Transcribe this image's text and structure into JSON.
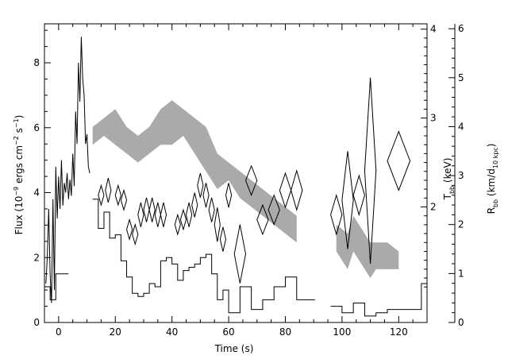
{
  "chart_data": {
    "type": "line",
    "title": "",
    "xlabel": "Time (s)",
    "xlim": [
      -5,
      130
    ],
    "x_ticks": [
      0,
      20,
      40,
      60,
      80,
      100,
      120
    ],
    "left_axis": {
      "label_main": "Flux (10",
      "label_exp1": "−9",
      "label_mid": " ergs cm",
      "label_exp2": "−2",
      "label_s": " s",
      "label_exp3": "−1",
      "label_end": ")",
      "ylim": [
        0,
        9.2
      ],
      "ticks": [
        0,
        2,
        4,
        6,
        8
      ]
    },
    "right_axis_1": {
      "label_main": "T",
      "label_sub": "bb",
      "label_end": " (keV)",
      "ylim": [
        0.7,
        4.06
      ],
      "ticks": [
        2,
        3,
        4
      ]
    },
    "right_axis_2": {
      "label_main": "R",
      "label_sub1": "bb",
      "label_mid": " (km/d",
      "label_sub2": "10 kpc",
      "label_end": ")",
      "ylim": [
        0,
        6.1
      ],
      "ticks": [
        0,
        1,
        2,
        3,
        4,
        5,
        6
      ]
    },
    "series": [
      {
        "role": "flux_lightcurve_fine",
        "axis": "left",
        "x": [
          -4.5,
          -4,
          -3.5,
          -3,
          -2.5,
          -2,
          -1.5,
          -1,
          -0.5,
          0,
          0.5,
          1,
          1.5,
          2,
          2.5,
          3,
          3.5,
          4,
          4.5,
          5,
          5.5,
          6,
          6.5,
          7,
          7.5,
          8,
          8.5,
          9,
          9.5,
          10,
          10.5,
          11
        ],
        "y": [
          1.2,
          2.0,
          3.5,
          1.5,
          0.6,
          3.8,
          1.0,
          4.8,
          3.2,
          4.5,
          3.5,
          5.0,
          3.6,
          4.3,
          4.0,
          4.6,
          3.8,
          4.4,
          3.9,
          5.2,
          4.2,
          6.5,
          5.5,
          8.0,
          6.8,
          8.8,
          7.5,
          7.0,
          5.5,
          5.8,
          4.8,
          4.6
        ]
      },
      {
        "role": "flux_lightcurve_binned",
        "axis": "left",
        "x": [
          -5,
          -3,
          -1,
          12,
          14,
          16,
          18,
          20,
          22,
          24,
          26,
          28,
          30,
          32,
          34,
          36,
          38,
          40,
          42,
          44,
          46,
          48,
          50,
          52,
          54,
          56,
          58,
          60,
          64,
          68,
          72,
          76,
          80,
          84,
          86,
          96,
          100,
          104,
          108,
          112,
          116,
          120,
          124,
          128
        ],
        "y": [
          1.1,
          0.7,
          1.5,
          3.8,
          2.9,
          3.4,
          2.6,
          2.7,
          1.9,
          1.4,
          0.9,
          0.8,
          0.9,
          1.2,
          1.1,
          1.9,
          2.0,
          1.8,
          1.3,
          1.6,
          1.7,
          1.8,
          2.0,
          2.1,
          1.5,
          0.7,
          1.0,
          0.3,
          1.1,
          0.4,
          0.7,
          1.1,
          1.4,
          0.7,
          0.7,
          0.5,
          0.3,
          0.6,
          0.2,
          0.3,
          0.4,
          0.4,
          0.4,
          1.2
        ]
      },
      {
        "role": "blackbody_temperature_band",
        "axis": "right_1",
        "x": [
          12,
          16,
          20,
          24,
          28,
          32,
          36,
          40,
          44,
          48,
          52,
          56,
          60,
          64,
          68,
          72,
          76,
          80,
          84,
          98,
          102,
          104,
          106,
          108,
          110,
          112,
          116,
          120
        ],
        "y_low": [
          2.7,
          2.8,
          2.7,
          2.6,
          2.5,
          2.6,
          2.7,
          2.7,
          2.8,
          2.6,
          2.4,
          2.2,
          2.3,
          2.1,
          2.0,
          1.9,
          1.8,
          1.7,
          1.6,
          1.5,
          1.3,
          1.5,
          1.4,
          1.3,
          1.2,
          1.3,
          1.3,
          1.3
        ],
        "y_high": [
          2.9,
          3.0,
          3.1,
          2.9,
          2.8,
          2.9,
          3.1,
          3.2,
          3.1,
          3.0,
          2.9,
          2.6,
          2.5,
          2.4,
          2.3,
          2.2,
          2.1,
          2.0,
          1.9,
          1.8,
          1.7,
          1.9,
          1.8,
          1.7,
          1.6,
          1.6,
          1.6,
          1.5
        ]
      },
      {
        "role": "blackbody_radius",
        "axis": "right_2",
        "points": [
          {
            "x": 15,
            "y": 2.6,
            "dx": 1.0,
            "dy": 0.2
          },
          {
            "x": 17.5,
            "y": 2.7,
            "dx": 1.0,
            "dy": 0.25
          },
          {
            "x": 21,
            "y": 2.6,
            "dx": 1.0,
            "dy": 0.2
          },
          {
            "x": 23,
            "y": 2.5,
            "dx": 1.0,
            "dy": 0.2
          },
          {
            "x": 25,
            "y": 1.9,
            "dx": 1.0,
            "dy": 0.2
          },
          {
            "x": 27,
            "y": 1.8,
            "dx": 1.0,
            "dy": 0.2
          },
          {
            "x": 29,
            "y": 2.2,
            "dx": 1.0,
            "dy": 0.25
          },
          {
            "x": 31,
            "y": 2.3,
            "dx": 1.0,
            "dy": 0.25
          },
          {
            "x": 33,
            "y": 2.3,
            "dx": 1.0,
            "dy": 0.25
          },
          {
            "x": 35,
            "y": 2.2,
            "dx": 1.0,
            "dy": 0.25
          },
          {
            "x": 37,
            "y": 2.2,
            "dx": 1.0,
            "dy": 0.25
          },
          {
            "x": 42,
            "y": 2.0,
            "dx": 1.0,
            "dy": 0.2
          },
          {
            "x": 44,
            "y": 2.1,
            "dx": 1.0,
            "dy": 0.2
          },
          {
            "x": 46,
            "y": 2.2,
            "dx": 1.0,
            "dy": 0.25
          },
          {
            "x": 48,
            "y": 2.4,
            "dx": 1.0,
            "dy": 0.25
          },
          {
            "x": 50,
            "y": 2.8,
            "dx": 1.0,
            "dy": 0.25
          },
          {
            "x": 52,
            "y": 2.6,
            "dx": 1.0,
            "dy": 0.25
          },
          {
            "x": 54,
            "y": 2.3,
            "dx": 1.0,
            "dy": 0.25
          },
          {
            "x": 56,
            "y": 2.0,
            "dx": 1.0,
            "dy": 0.35
          },
          {
            "x": 58,
            "y": 1.7,
            "dx": 1.0,
            "dy": 0.25
          },
          {
            "x": 60,
            "y": 2.6,
            "dx": 1.0,
            "dy": 0.25
          },
          {
            "x": 64,
            "y": 1.4,
            "dx": 2.0,
            "dy": 0.6
          },
          {
            "x": 68,
            "y": 2.9,
            "dx": 2.0,
            "dy": 0.3
          },
          {
            "x": 72,
            "y": 2.1,
            "dx": 2.0,
            "dy": 0.3
          },
          {
            "x": 76,
            "y": 2.3,
            "dx": 2.0,
            "dy": 0.3
          },
          {
            "x": 80,
            "y": 2.7,
            "dx": 2.0,
            "dy": 0.35
          },
          {
            "x": 84,
            "y": 2.7,
            "dx": 2.0,
            "dy": 0.4
          },
          {
            "x": 98,
            "y": 2.2,
            "dx": 2.0,
            "dy": 0.4
          },
          {
            "x": 102,
            "y": 2.5,
            "dx": 2.0,
            "dy": 1.0
          },
          {
            "x": 106,
            "y": 2.6,
            "dx": 2.0,
            "dy": 0.4
          },
          {
            "x": 110,
            "y": 3.1,
            "dx": 2.0,
            "dy": 1.9
          },
          {
            "x": 120,
            "y": 3.3,
            "dx": 4.0,
            "dy": 0.6
          }
        ]
      }
    ],
    "legend": "none",
    "grid": false
  }
}
